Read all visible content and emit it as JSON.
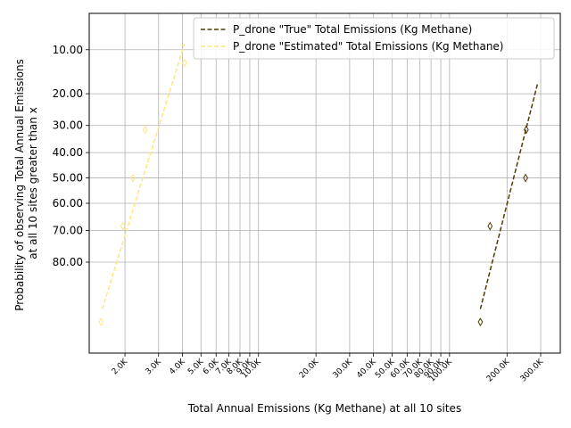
{
  "chart_data": {
    "type": "line",
    "title": "",
    "xlabel": "Total Annual Emissions (Kg Methane) at all 10 sites",
    "ylabel_lines": [
      "Probability of observing Total Annual Emissions",
      "at all 10 sites greater than x"
    ],
    "x_scale": "log",
    "y_scale": "normal-probability",
    "xlim": [
      1300,
      380000
    ],
    "ylim": [
      96,
      5
    ],
    "grid": true,
    "legend": "top-right",
    "x_ticks": [
      {
        "value": 2000,
        "label": "2.0K"
      },
      {
        "value": 3000,
        "label": "3.0K"
      },
      {
        "value": 4000,
        "label": "4.0K"
      },
      {
        "value": 5000,
        "label": "5.0K"
      },
      {
        "value": 6000,
        "label": "6.0K"
      },
      {
        "value": 7000,
        "label": "7.0K"
      },
      {
        "value": 8000,
        "label": "8.0K"
      },
      {
        "value": 9000,
        "label": "9.0K"
      },
      {
        "value": 10000,
        "label": "10.0K"
      },
      {
        "value": 20000,
        "label": "20.0K"
      },
      {
        "value": 30000,
        "label": "30.0K"
      },
      {
        "value": 40000,
        "label": "40.0K"
      },
      {
        "value": 50000,
        "label": "50.0K"
      },
      {
        "value": 60000,
        "label": "60.0K"
      },
      {
        "value": 70000,
        "label": "70.0K"
      },
      {
        "value": 80000,
        "label": "80.0K"
      },
      {
        "value": 90000,
        "label": "90.0K"
      },
      {
        "value": 100000,
        "label": "100.0K"
      },
      {
        "value": 200000,
        "label": "200.0K"
      },
      {
        "value": 300000,
        "label": "300.0K"
      }
    ],
    "y_ticks": [
      {
        "value": 10,
        "label": "10.00"
      },
      {
        "value": 20,
        "label": "20.00"
      },
      {
        "value": 30,
        "label": "30.00"
      },
      {
        "value": 40,
        "label": "40.00"
      },
      {
        "value": 50,
        "label": "50.00"
      },
      {
        "value": 60,
        "label": "60.00"
      },
      {
        "value": 70,
        "label": "70.00"
      },
      {
        "value": 80,
        "label": "80.00"
      }
    ],
    "series": [
      {
        "name": "P_drone \"True\" Total Emissions (Kg Methane)",
        "color": "#4d3b00",
        "line": {
          "x": [
            145000,
            290000
          ],
          "y": [
            90.5,
            17
          ]
        },
        "points": [
          {
            "x": 145000,
            "y": 92.5
          },
          {
            "x": 163000,
            "y": 68.5
          },
          {
            "x": 250000,
            "y": 50
          },
          {
            "x": 252000,
            "y": 31.5
          }
        ]
      },
      {
        "name": "P_drone \"Estimated\" Total Emissions (Kg Methane)",
        "color": "#ffe680",
        "line": {
          "x": [
            1520,
            4100
          ],
          "y": [
            90.5,
            9
          ]
        },
        "points": [
          {
            "x": 1500,
            "y": 92.5
          },
          {
            "x": 1950,
            "y": 68.5
          },
          {
            "x": 2200,
            "y": 50
          },
          {
            "x": 2550,
            "y": 31.5
          },
          {
            "x": 4100,
            "y": 12.5
          }
        ]
      }
    ]
  }
}
